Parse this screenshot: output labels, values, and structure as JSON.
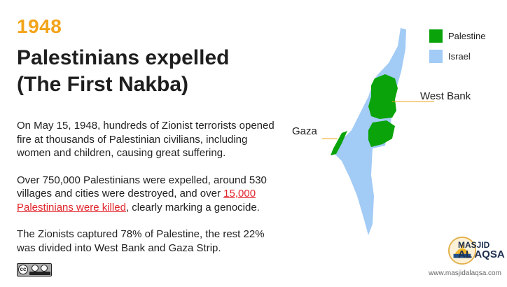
{
  "header": {
    "year": "1948",
    "title_line1": "Palestinians expelled",
    "title_line2": "(The First Nakba)"
  },
  "body": {
    "paragraph1": "On May 15, 1948, hundreds of Zionist terrorists opened fire at thousands of Palestinian civilians, including women and children, causing great suffering.",
    "paragraph2_before": "Over 750,000 Palestinians were expelled, around 530 villages and cities were destroyed, and over ",
    "paragraph2_highlight": "15,000 Palestinians were killed",
    "paragraph2_after": ", clearly marking a genocide.",
    "paragraph3": "The Zionists captured 78% of Palestine, the rest 22% was divided into West Bank and Gaza Strip."
  },
  "legend": [
    {
      "label": "Palestine",
      "color": "#0aa30a"
    },
    {
      "label": "Israel",
      "color": "#a2cbf6"
    }
  ],
  "map_labels": {
    "west_bank": "West Bank",
    "gaza": "Gaza"
  },
  "colors": {
    "accent": "#f2a41a",
    "highlight": "#e0262c",
    "line": "#f2a41a"
  },
  "license": {
    "text": "cc"
  },
  "logo": {
    "line1": "MASJID",
    "line2": "AL AQSA",
    "website": "www.masjidalaqsa.com"
  }
}
